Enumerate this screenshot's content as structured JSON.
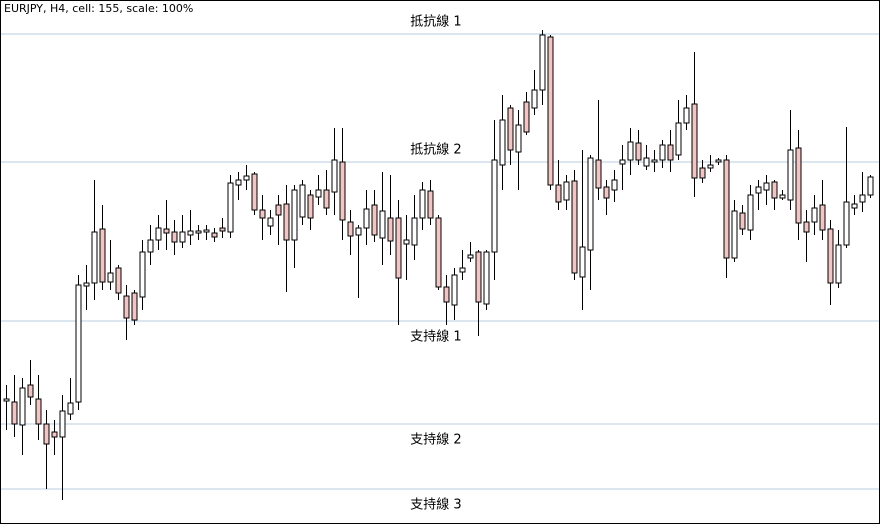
{
  "chart_data": {
    "type": "candlestick",
    "title": "EURJPY, H4, cell: 155, scale: 100%",
    "ylim": [
      0,
      524
    ],
    "up_color": "#ffffff",
    "down_color": "#f2c4c4",
    "level_color": "#b8cde0",
    "levels": [
      {
        "label": "抵抗線 1",
        "value": 490
      },
      {
        "label": "抵抗線 2",
        "value": 362
      },
      {
        "label": "支持線 1",
        "value": 203
      },
      {
        "label": "支持線 2",
        "value": 100
      },
      {
        "label": "支持線 3",
        "value": 35
      }
    ],
    "open": [
      123,
      122,
      99,
      139,
      125,
      100,
      92,
      87,
      110,
      122,
      238,
      241,
      295,
      242,
      256,
      228,
      231,
      227,
      272,
      284,
      295,
      292,
      282,
      289,
      291,
      292,
      291,
      296,
      292,
      339,
      344,
      350,
      314,
      298,
      319,
      320,
      284,
      307,
      329,
      327,
      334,
      332,
      362,
      302,
      289,
      296,
      319,
      286,
      306,
      306,
      280,
      279,
      306,
      333,
      306,
      237,
      219,
      252,
      266,
      272,
      220,
      272,
      359,
      416,
      372,
      422,
      416,
      434,
      487,
      339,
      324,
      343,
      247,
      274,
      364,
      337,
      334,
      360,
      364,
      381,
      358,
      362,
      364,
      379,
      369,
      401,
      420,
      356,
      356,
      362,
      364,
      266,
      311,
      294,
      331,
      334,
      342,
      326,
      324,
      376,
      302,
      302,
      319,
      295,
      241,
      279,
      316,
      322,
      329
    ],
    "high": [
      139,
      149,
      146,
      164,
      149,
      114,
      104,
      129,
      146,
      249,
      259,
      344,
      319,
      284,
      259,
      239,
      234,
      284,
      299,
      309,
      324,
      304,
      309,
      314,
      299,
      299,
      296,
      306,
      349,
      352,
      359,
      352,
      329,
      314,
      329,
      339,
      339,
      344,
      334,
      349,
      354,
      396,
      396,
      314,
      299,
      334,
      334,
      352,
      349,
      324,
      309,
      329,
      342,
      344,
      309,
      249,
      256,
      274,
      282,
      274,
      274,
      404,
      429,
      419,
      414,
      432,
      454,
      494,
      489,
      364,
      349,
      354,
      374,
      369,
      424,
      344,
      354,
      379,
      396,
      394,
      379,
      374,
      384,
      394,
      424,
      429,
      472,
      364,
      369,
      366,
      369,
      324,
      319,
      339,
      344,
      349,
      344,
      334,
      414,
      394,
      314,
      329,
      344,
      304,
      294,
      397,
      329,
      352,
      349
    ],
    "low": [
      94,
      87,
      69,
      119,
      84,
      35,
      69,
      24,
      104,
      114,
      214,
      224,
      234,
      234,
      224,
      184,
      199,
      214,
      259,
      274,
      274,
      269,
      276,
      279,
      284,
      284,
      282,
      286,
      286,
      324,
      334,
      309,
      284,
      289,
      279,
      232,
      256,
      299,
      294,
      319,
      309,
      309,
      284,
      269,
      226,
      279,
      282,
      259,
      269,
      199,
      244,
      264,
      294,
      299,
      234,
      199,
      204,
      244,
      262,
      188,
      214,
      244,
      334,
      359,
      334,
      389,
      409,
      419,
      334,
      314,
      314,
      244,
      214,
      234,
      324,
      309,
      322,
      334,
      349,
      359,
      354,
      352,
      356,
      352,
      364,
      394,
      327,
      341,
      352,
      359,
      246,
      262,
      289,
      284,
      314,
      319,
      314,
      324,
      314,
      284,
      262,
      289,
      284,
      219,
      236,
      276,
      309,
      312,
      326
    ],
    "close": [
      125,
      100,
      136,
      127,
      100,
      80,
      87,
      113,
      121,
      239,
      241,
      292,
      242,
      251,
      231,
      206,
      204,
      272,
      284,
      296,
      291,
      282,
      292,
      293,
      293,
      294,
      287,
      293,
      341,
      344,
      348,
      314,
      306,
      306,
      309,
      284,
      334,
      339,
      306,
      334,
      316,
      364,
      304,
      288,
      296,
      315,
      289,
      313,
      283,
      246,
      284,
      306,
      334,
      306,
      237,
      222,
      249,
      256,
      269,
      222,
      272,
      364,
      404,
      374,
      399,
      392,
      434,
      489,
      339,
      322,
      342,
      251,
      277,
      366,
      336,
      326,
      344,
      364,
      382,
      364,
      366,
      364,
      379,
      364,
      401,
      416,
      346,
      346,
      359,
      364,
      266,
      313,
      295,
      329,
      337,
      341,
      326,
      329,
      374,
      301,
      292,
      316,
      294,
      241,
      279,
      322,
      320,
      329,
      347
    ]
  }
}
